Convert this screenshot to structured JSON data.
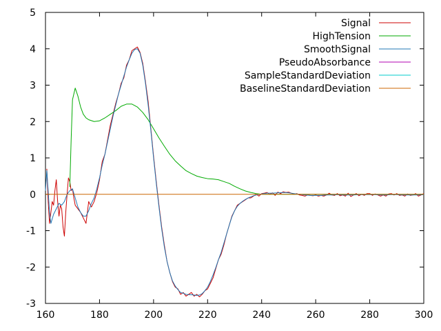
{
  "chart_data": {
    "type": "line",
    "title": "",
    "xlabel": "",
    "ylabel": "",
    "xlim": [
      160,
      300
    ],
    "ylim": [
      -3,
      5
    ],
    "x_ticks": [
      160,
      180,
      200,
      220,
      240,
      260,
      280,
      300
    ],
    "y_ticks": [
      -3,
      -2,
      -1,
      0,
      1,
      2,
      3,
      4,
      5
    ],
    "x_tick_labels": [
      "160",
      "180",
      "200",
      "220",
      "240",
      "260",
      "280",
      "300"
    ],
    "y_tick_labels": [
      "-3",
      "-2",
      "-1",
      "0",
      "1",
      "2",
      "3",
      "4",
      "5"
    ],
    "grid": false,
    "legend_position": "top-right",
    "series": [
      {
        "name": "Signal",
        "color": "#cc0000",
        "points": [
          [
            160.5,
            0.7
          ],
          [
            161,
            -0.2
          ],
          [
            161.5,
            -0.8
          ],
          [
            162,
            -0.5
          ],
          [
            162.5,
            -0.2
          ],
          [
            163,
            -0.3
          ],
          [
            163.5,
            0.1
          ],
          [
            164,
            0.4
          ],
          [
            164.5,
            -0.2
          ],
          [
            165,
            -0.6
          ],
          [
            165.5,
            -0.3
          ],
          [
            166,
            -0.4
          ],
          [
            166.5,
            -0.9
          ],
          [
            167,
            -1.15
          ],
          [
            167.5,
            -0.5
          ],
          [
            168,
            0.0
          ],
          [
            168.5,
            0.45
          ],
          [
            169,
            0.35
          ],
          [
            169.5,
            0.1
          ],
          [
            170,
            0.15
          ],
          [
            170.5,
            -0.1
          ],
          [
            171,
            -0.3
          ],
          [
            172,
            -0.4
          ],
          [
            173,
            -0.5
          ],
          [
            174,
            -0.65
          ],
          [
            175,
            -0.8
          ],
          [
            176,
            -0.2
          ],
          [
            177,
            -0.35
          ],
          [
            178,
            -0.2
          ],
          [
            179,
            0.05
          ],
          [
            180,
            0.4
          ],
          [
            181,
            0.9
          ],
          [
            182,
            1.1
          ],
          [
            183,
            1.5
          ],
          [
            184,
            1.9
          ],
          [
            185,
            2.2
          ],
          [
            186,
            2.5
          ],
          [
            187,
            2.75
          ],
          [
            188,
            3.05
          ],
          [
            189,
            3.2
          ],
          [
            190,
            3.55
          ],
          [
            191,
            3.7
          ],
          [
            192,
            3.95
          ],
          [
            193,
            4.0
          ],
          [
            194,
            4.05
          ],
          [
            195,
            3.9
          ],
          [
            196,
            3.6
          ],
          [
            197,
            3.1
          ],
          [
            198,
            2.55
          ],
          [
            199,
            1.8
          ],
          [
            200,
            1.05
          ],
          [
            201,
            0.35
          ],
          [
            202,
            -0.3
          ],
          [
            203,
            -0.9
          ],
          [
            204,
            -1.4
          ],
          [
            205,
            -1.85
          ],
          [
            206,
            -2.15
          ],
          [
            207,
            -2.4
          ],
          [
            208,
            -2.55
          ],
          [
            209,
            -2.6
          ],
          [
            210,
            -2.75
          ],
          [
            211,
            -2.7
          ],
          [
            212,
            -2.8
          ],
          [
            213,
            -2.75
          ],
          [
            214,
            -2.7
          ],
          [
            215,
            -2.8
          ],
          [
            216,
            -2.75
          ],
          [
            217,
            -2.82
          ],
          [
            218,
            -2.75
          ],
          [
            219,
            -2.65
          ],
          [
            220,
            -2.6
          ],
          [
            221,
            -2.45
          ],
          [
            222,
            -2.3
          ],
          [
            223,
            -2.05
          ],
          [
            224,
            -1.8
          ],
          [
            225,
            -1.65
          ],
          [
            226,
            -1.4
          ],
          [
            227,
            -1.1
          ],
          [
            228,
            -0.85
          ],
          [
            229,
            -0.6
          ],
          [
            230,
            -0.45
          ],
          [
            231,
            -0.3
          ],
          [
            232,
            -0.25
          ],
          [
            233,
            -0.2
          ],
          [
            234,
            -0.15
          ],
          [
            235,
            -0.1
          ],
          [
            236,
            -0.1
          ],
          [
            237,
            -0.05
          ],
          [
            238,
            0.0
          ],
          [
            239,
            -0.05
          ],
          [
            240,
            0.02
          ],
          [
            241,
            0.03
          ],
          [
            242,
            0.05
          ],
          [
            243,
            0.0
          ],
          [
            244,
            0.04
          ],
          [
            245,
            -0.03
          ],
          [
            246,
            0.06
          ],
          [
            247,
            0.02
          ],
          [
            248,
            0.07
          ],
          [
            249,
            0.05
          ],
          [
            250,
            0.06
          ],
          [
            251,
            0.03
          ],
          [
            252,
            0.0
          ],
          [
            253,
            0.02
          ],
          [
            254,
            -0.02
          ],
          [
            255,
            -0.03
          ],
          [
            256,
            -0.05
          ],
          [
            257,
            -0.02
          ],
          [
            258,
            -0.03
          ],
          [
            259,
            -0.04
          ],
          [
            260,
            -0.02
          ],
          [
            261,
            -0.05
          ],
          [
            262,
            -0.03
          ],
          [
            263,
            -0.05
          ],
          [
            264,
            -0.02
          ],
          [
            265,
            0.03
          ],
          [
            266,
            -0.02
          ],
          [
            267,
            -0.03
          ],
          [
            268,
            0.02
          ],
          [
            269,
            -0.04
          ],
          [
            270,
            -0.02
          ],
          [
            271,
            -0.05
          ],
          [
            272,
            0.03
          ],
          [
            273,
            -0.06
          ],
          [
            274,
            -0.02
          ],
          [
            275,
            0.02
          ],
          [
            276,
            -0.04
          ],
          [
            277,
            0.0
          ],
          [
            278,
            -0.03
          ],
          [
            279,
            0.02
          ],
          [
            280,
            0.02
          ],
          [
            281,
            -0.03
          ],
          [
            282,
            0.01
          ],
          [
            283,
            -0.02
          ],
          [
            284,
            -0.05
          ],
          [
            285,
            -0.02
          ],
          [
            286,
            -0.05
          ],
          [
            287,
            0.01
          ],
          [
            288,
            0.02
          ],
          [
            289,
            -0.02
          ],
          [
            290,
            0.02
          ],
          [
            291,
            -0.03
          ],
          [
            292,
            -0.02
          ],
          [
            293,
            -0.05
          ],
          [
            294,
            0.01
          ],
          [
            295,
            -0.03
          ],
          [
            296,
            -0.02
          ],
          [
            297,
            0.02
          ],
          [
            298,
            -0.05
          ],
          [
            299,
            -0.02
          ],
          [
            300,
            0.02
          ]
        ]
      },
      {
        "name": "HighTension",
        "color": "#00aa00",
        "points": [
          [
            169,
            0.2
          ],
          [
            169.5,
            1.5
          ],
          [
            170,
            2.6
          ],
          [
            171,
            2.92
          ],
          [
            172,
            2.7
          ],
          [
            173,
            2.4
          ],
          [
            174,
            2.2
          ],
          [
            175,
            2.1
          ],
          [
            176,
            2.05
          ],
          [
            178,
            2.0
          ],
          [
            180,
            2.02
          ],
          [
            182,
            2.1
          ],
          [
            184,
            2.2
          ],
          [
            186,
            2.3
          ],
          [
            188,
            2.42
          ],
          [
            190,
            2.48
          ],
          [
            192,
            2.48
          ],
          [
            194,
            2.4
          ],
          [
            196,
            2.25
          ],
          [
            198,
            2.05
          ],
          [
            200,
            1.8
          ],
          [
            202,
            1.55
          ],
          [
            204,
            1.32
          ],
          [
            206,
            1.1
          ],
          [
            208,
            0.92
          ],
          [
            210,
            0.78
          ],
          [
            212,
            0.65
          ],
          [
            214,
            0.57
          ],
          [
            216,
            0.5
          ],
          [
            218,
            0.46
          ],
          [
            220,
            0.43
          ],
          [
            222,
            0.42
          ],
          [
            224,
            0.4
          ],
          [
            226,
            0.35
          ],
          [
            228,
            0.3
          ],
          [
            230,
            0.22
          ],
          [
            232,
            0.15
          ],
          [
            234,
            0.09
          ],
          [
            236,
            0.05
          ],
          [
            238,
            0.02
          ],
          [
            240,
            0.0
          ],
          [
            245,
            0.0
          ],
          [
            250,
            0.0
          ],
          [
            260,
            0.0
          ],
          [
            270,
            0.0
          ],
          [
            280,
            0.0
          ],
          [
            290,
            0.0
          ],
          [
            300,
            0.0
          ]
        ]
      },
      {
        "name": "SmoothSignal",
        "color": "#1f77b4",
        "points": [
          [
            160,
            0.1
          ],
          [
            160.5,
            0.65
          ],
          [
            161,
            0.1
          ],
          [
            161.5,
            -0.5
          ],
          [
            162,
            -0.8
          ],
          [
            163,
            -0.55
          ],
          [
            164,
            -0.4
          ],
          [
            165,
            -0.25
          ],
          [
            166,
            -0.3
          ],
          [
            167,
            -0.2
          ],
          [
            168,
            0.0
          ],
          [
            169,
            0.1
          ],
          [
            170,
            0.15
          ],
          [
            171,
            -0.1
          ],
          [
            172,
            -0.35
          ],
          [
            173,
            -0.5
          ],
          [
            174,
            -0.6
          ],
          [
            175,
            -0.6
          ],
          [
            176,
            -0.45
          ],
          [
            177,
            -0.25
          ],
          [
            178,
            -0.1
          ],
          [
            179,
            0.15
          ],
          [
            180,
            0.45
          ],
          [
            181,
            0.8
          ],
          [
            182,
            1.1
          ],
          [
            183,
            1.45
          ],
          [
            184,
            1.8
          ],
          [
            185,
            2.15
          ],
          [
            186,
            2.45
          ],
          [
            187,
            2.75
          ],
          [
            188,
            3.0
          ],
          [
            189,
            3.25
          ],
          [
            190,
            3.5
          ],
          [
            191,
            3.7
          ],
          [
            192,
            3.88
          ],
          [
            193,
            3.98
          ],
          [
            194,
            4.0
          ],
          [
            195,
            3.88
          ],
          [
            196,
            3.55
          ],
          [
            197,
            3.05
          ],
          [
            198,
            2.45
          ],
          [
            199,
            1.75
          ],
          [
            200,
            1.0
          ],
          [
            201,
            0.3
          ],
          [
            202,
            -0.35
          ],
          [
            203,
            -0.95
          ],
          [
            204,
            -1.45
          ],
          [
            205,
            -1.85
          ],
          [
            206,
            -2.15
          ],
          [
            207,
            -2.38
          ],
          [
            208,
            -2.52
          ],
          [
            209,
            -2.62
          ],
          [
            210,
            -2.7
          ],
          [
            211,
            -2.72
          ],
          [
            212,
            -2.75
          ],
          [
            213,
            -2.76
          ],
          [
            214,
            -2.76
          ],
          [
            215,
            -2.77
          ],
          [
            216,
            -2.78
          ],
          [
            217,
            -2.77
          ],
          [
            218,
            -2.73
          ],
          [
            219,
            -2.65
          ],
          [
            220,
            -2.55
          ],
          [
            221,
            -2.4
          ],
          [
            222,
            -2.22
          ],
          [
            223,
            -2.02
          ],
          [
            224,
            -1.8
          ],
          [
            225,
            -1.6
          ],
          [
            226,
            -1.35
          ],
          [
            227,
            -1.1
          ],
          [
            228,
            -0.85
          ],
          [
            229,
            -0.62
          ],
          [
            230,
            -0.45
          ],
          [
            231,
            -0.33
          ],
          [
            232,
            -0.25
          ],
          [
            233,
            -0.19
          ],
          [
            234,
            -0.14
          ],
          [
            235,
            -0.1
          ],
          [
            236,
            -0.07
          ],
          [
            237,
            -0.04
          ],
          [
            238,
            -0.02
          ],
          [
            240,
            0.01
          ],
          [
            242,
            0.03
          ],
          [
            244,
            0.03
          ],
          [
            246,
            0.04
          ],
          [
            248,
            0.05
          ],
          [
            250,
            0.04
          ],
          [
            252,
            0.02
          ],
          [
            254,
            0.0
          ],
          [
            256,
            -0.02
          ],
          [
            258,
            -0.03
          ],
          [
            260,
            -0.03
          ],
          [
            262,
            -0.03
          ],
          [
            264,
            -0.02
          ],
          [
            266,
            -0.02
          ],
          [
            268,
            -0.01
          ],
          [
            270,
            -0.02
          ],
          [
            272,
            -0.02
          ],
          [
            274,
            -0.02
          ],
          [
            276,
            -0.01
          ],
          [
            278,
            -0.01
          ],
          [
            280,
            -0.01
          ],
          [
            282,
            -0.01
          ],
          [
            284,
            -0.02
          ],
          [
            286,
            -0.02
          ],
          [
            288,
            -0.01
          ],
          [
            290,
            -0.01
          ],
          [
            292,
            -0.02
          ],
          [
            294,
            -0.02
          ],
          [
            296,
            -0.02
          ],
          [
            298,
            -0.02
          ],
          [
            300,
            -0.01
          ]
        ]
      },
      {
        "name": "PseudoAbsorbance",
        "color": "#b000b0",
        "points": []
      },
      {
        "name": "SampleStandardDeviation",
        "color": "#00cccc",
        "points": []
      },
      {
        "name": "BaselineStandardDeviation",
        "color": "#cc6600",
        "points": [
          [
            160,
            0.0
          ],
          [
            300,
            0.0
          ]
        ]
      }
    ]
  }
}
